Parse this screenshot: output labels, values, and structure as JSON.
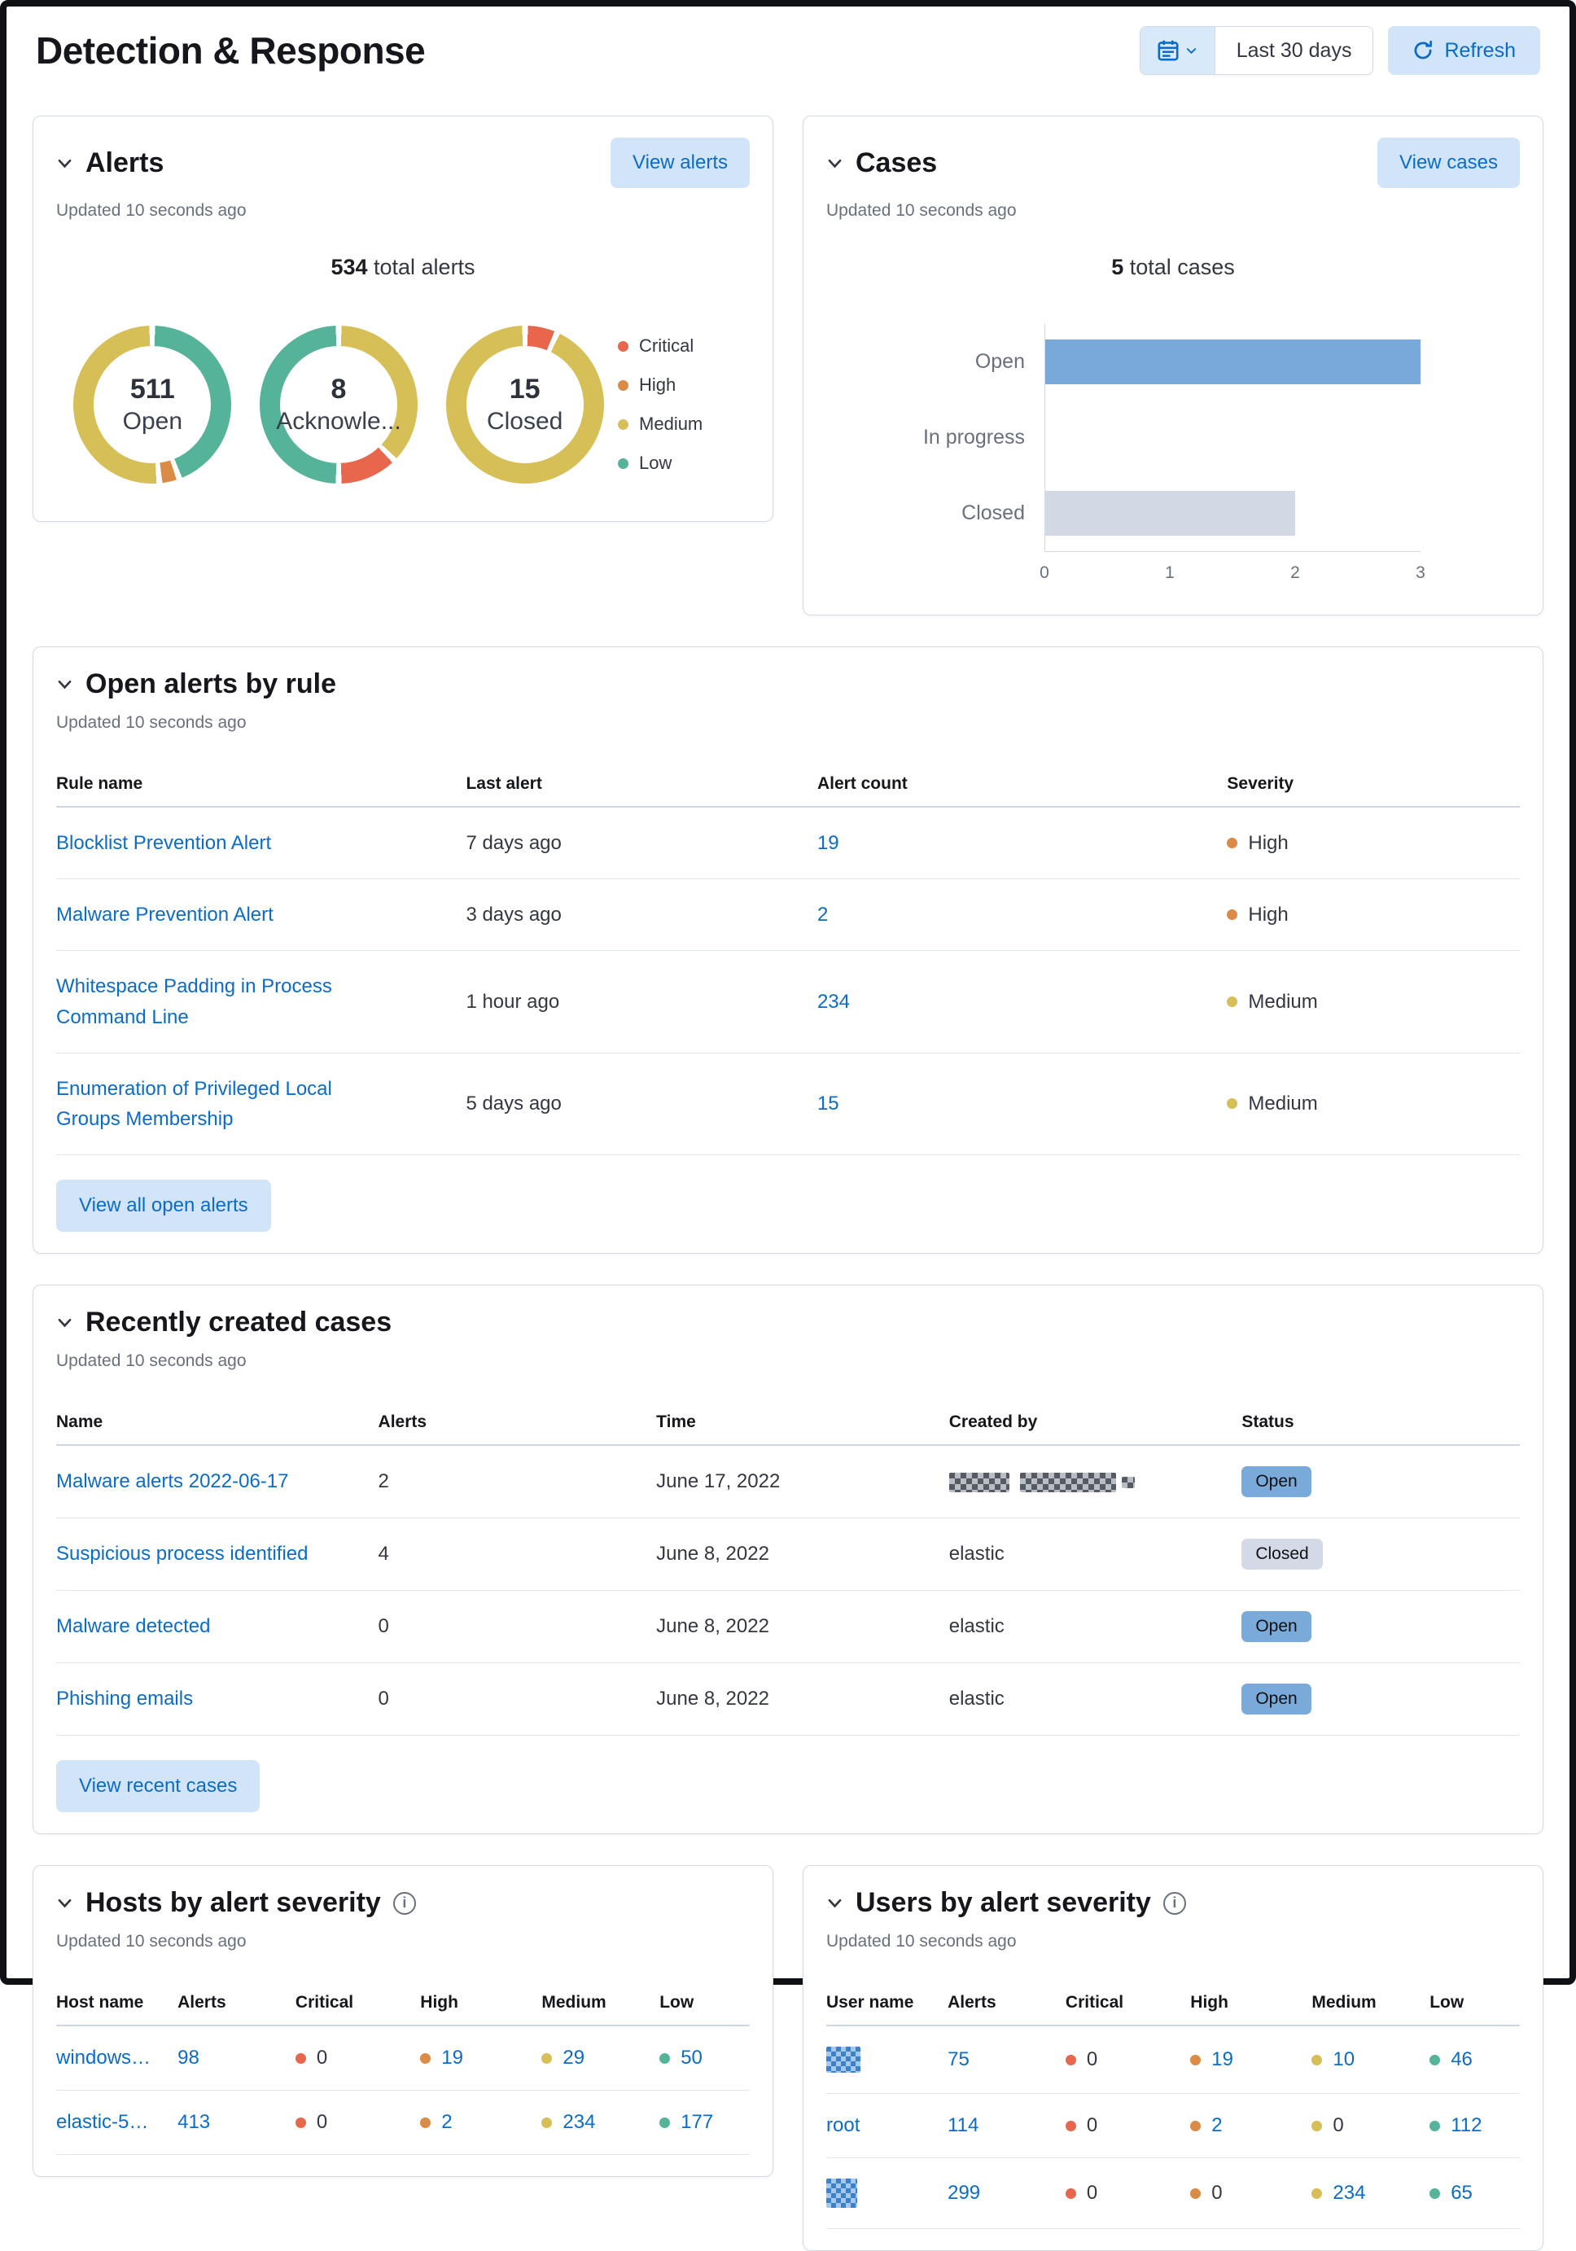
{
  "header": {
    "title": "Detection & Response",
    "time_range": "Last 30 days",
    "refresh_label": "Refresh"
  },
  "colors": {
    "critical": "#E7664C",
    "high": "#DA8B45",
    "medium": "#D6BF57",
    "low": "#54B399",
    "link": "#0B6CC8",
    "bar_open": "#79A8DA",
    "bar_closed": "#D3D9E4",
    "badge_open": "#79AAD9",
    "badge_closed": "#D3DAE6"
  },
  "panels": {
    "alerts": {
      "title": "Alerts",
      "action": "View alerts",
      "updated": "Updated 10 seconds ago",
      "total_value": "534",
      "total_label": " total alerts",
      "donuts": [
        {
          "value": "511",
          "label": "Open"
        },
        {
          "value": "8",
          "label": "Acknowle..."
        },
        {
          "value": "15",
          "label": "Closed"
        }
      ],
      "legend": [
        "Critical",
        "High",
        "Medium",
        "Low"
      ]
    },
    "cases": {
      "title": "Cases",
      "action": "View cases",
      "updated": "Updated 10 seconds ago",
      "total_value": "5",
      "total_label": " total cases"
    },
    "open_alerts": {
      "title": "Open alerts by rule",
      "updated": "Updated 10 seconds ago",
      "columns": [
        "Rule name",
        "Last alert",
        "Alert count",
        "Severity"
      ],
      "rows": [
        {
          "name": "Blocklist Prevention Alert",
          "last_alert": "7 days ago",
          "count": "19",
          "severity": "High"
        },
        {
          "name": "Malware Prevention Alert",
          "last_alert": "3 days ago",
          "count": "2",
          "severity": "High"
        },
        {
          "name": "Whitespace Padding in Process Command Line",
          "last_alert": "1 hour ago",
          "count": "234",
          "severity": "Medium"
        },
        {
          "name": "Enumeration of Privileged Local Groups Membership",
          "last_alert": "5 days ago",
          "count": "15",
          "severity": "Medium"
        }
      ],
      "button": "View all open alerts"
    },
    "recent_cases": {
      "title": "Recently created cases",
      "updated": "Updated 10 seconds ago",
      "columns": [
        "Name",
        "Alerts",
        "Time",
        "Created by",
        "Status"
      ],
      "rows": [
        {
          "name": "Malware alerts 2022-06-17",
          "alerts": "2",
          "time": "June 17, 2022",
          "created_by": "",
          "created_by_redacted": true,
          "status": "Open"
        },
        {
          "name": "Suspicious process identified",
          "alerts": "4",
          "time": "June 8, 2022",
          "created_by": "elastic",
          "created_by_redacted": false,
          "status": "Closed"
        },
        {
          "name": "Malware detected",
          "alerts": "0",
          "time": "June 8, 2022",
          "created_by": "elastic",
          "created_by_redacted": false,
          "status": "Open"
        },
        {
          "name": "Phishing emails",
          "alerts": "0",
          "time": "June 8, 2022",
          "created_by": "elastic",
          "created_by_redacted": false,
          "status": "Open"
        }
      ],
      "button": "View recent cases"
    },
    "hosts": {
      "title": "Hosts by alert severity",
      "updated": "Updated 10 seconds ago",
      "columns": [
        "Host name",
        "Alerts",
        "Critical",
        "High",
        "Medium",
        "Low"
      ],
      "rows": [
        {
          "name": "windows…",
          "alerts": "98",
          "critical": "0",
          "high": "19",
          "medium": "29",
          "low": "50"
        },
        {
          "name": "elastic-5…",
          "alerts": "413",
          "critical": "0",
          "high": "2",
          "medium": "234",
          "low": "177"
        }
      ]
    },
    "users": {
      "title": "Users by alert severity",
      "updated": "Updated 10 seconds ago",
      "columns": [
        "User name",
        "Alerts",
        "Critical",
        "High",
        "Medium",
        "Low"
      ],
      "rows": [
        {
          "name": "",
          "name_redacted": true,
          "alerts": "75",
          "critical": "0",
          "high": "19",
          "medium": "10",
          "low": "46"
        },
        {
          "name": "root",
          "name_redacted": false,
          "alerts": "114",
          "critical": "0",
          "high": "2",
          "medium": "0",
          "low": "112"
        },
        {
          "name": "",
          "name_redacted": true,
          "alerts": "299",
          "critical": "0",
          "high": "0",
          "medium": "234",
          "low": "65"
        }
      ]
    }
  },
  "chart_data": [
    {
      "type": "pie",
      "subtype": "donut-set",
      "title": "534 total alerts",
      "legend": [
        "Critical",
        "High",
        "Medium",
        "Low"
      ],
      "legend_position": "right",
      "donuts": [
        {
          "value": 511,
          "label": "Open",
          "segments": [
            {
              "severity": "Low",
              "count": 227
            },
            {
              "severity": "High",
              "count": 21
            },
            {
              "severity": "Medium",
              "count": 263
            }
          ]
        },
        {
          "value": 8,
          "label": "Acknowledged",
          "segments": [
            {
              "severity": "Medium",
              "count": 3
            },
            {
              "severity": "Critical",
              "count": 1
            },
            {
              "severity": "Low",
              "count": 4
            }
          ]
        },
        {
          "value": 15,
          "label": "Closed",
          "segments": [
            {
              "severity": "Critical",
              "count": 1
            },
            {
              "severity": "Medium",
              "count": 14
            }
          ]
        }
      ]
    },
    {
      "type": "bar",
      "orientation": "horizontal",
      "title": "5 total cases",
      "categories": [
        "Open",
        "In progress",
        "Closed"
      ],
      "values": [
        3,
        0,
        2
      ],
      "colors": [
        "#79A8DA",
        "#79A8DA",
        "#D3D9E4"
      ],
      "xlim": [
        0,
        3
      ],
      "xticks": [
        "0",
        "1",
        "2",
        "3"
      ],
      "grid": false
    }
  ]
}
